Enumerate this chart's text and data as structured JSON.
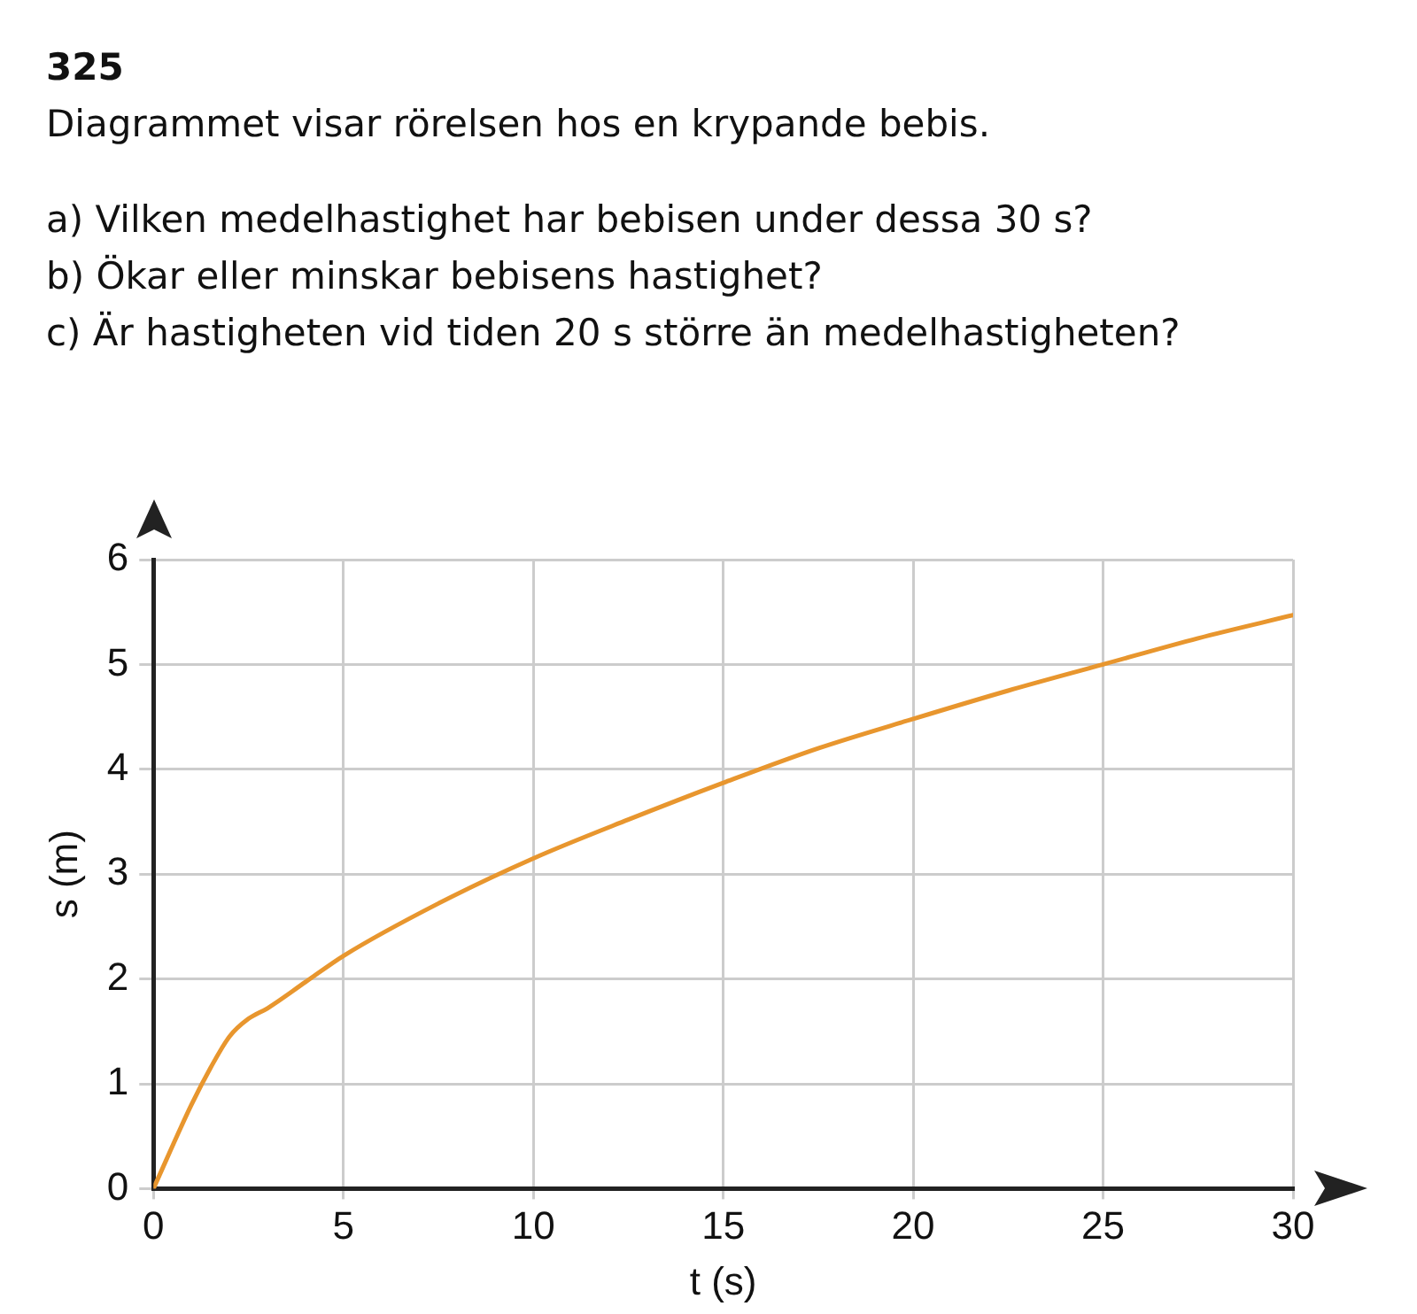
{
  "chart_data": {
    "type": "line",
    "title": "325",
    "subtitle": "Diagrammet visar rörelsen hos en krypande bebis.",
    "annotations": [
      "a) Vilken medelhastighet har bebisen under dessa 30 s?",
      "b) Ökar eller minskar bebisens hastighet?",
      "c) Är hastigheten vid tiden 20 s större än medelhastigheten?"
    ],
    "xlabel": "t (s)",
    "ylabel": "s (m)",
    "x": [
      0,
      1,
      1.5,
      2,
      2.5,
      3,
      4,
      5,
      7.5,
      10,
      12.5,
      15,
      17.5,
      20,
      22.5,
      25,
      27.5,
      30
    ],
    "series": [
      {
        "color": "#e8962e",
        "values": [
          0,
          0.8,
          1.15,
          1.45,
          1.62,
          1.72,
          1.97,
          2.22,
          2.72,
          3.15,
          3.52,
          3.87,
          4.2,
          4.48,
          4.75,
          5.0,
          5.25,
          5.47
        ]
      }
    ],
    "xlim": [
      0,
      30
    ],
    "xticks": [
      0,
      5,
      10,
      15,
      20,
      25,
      30
    ],
    "ylim": [
      0,
      6
    ],
    "yticks": [
      0,
      1,
      2,
      3,
      4,
      5,
      6
    ],
    "grid": true,
    "legend": false,
    "marker": "none",
    "line_style": "solid"
  }
}
